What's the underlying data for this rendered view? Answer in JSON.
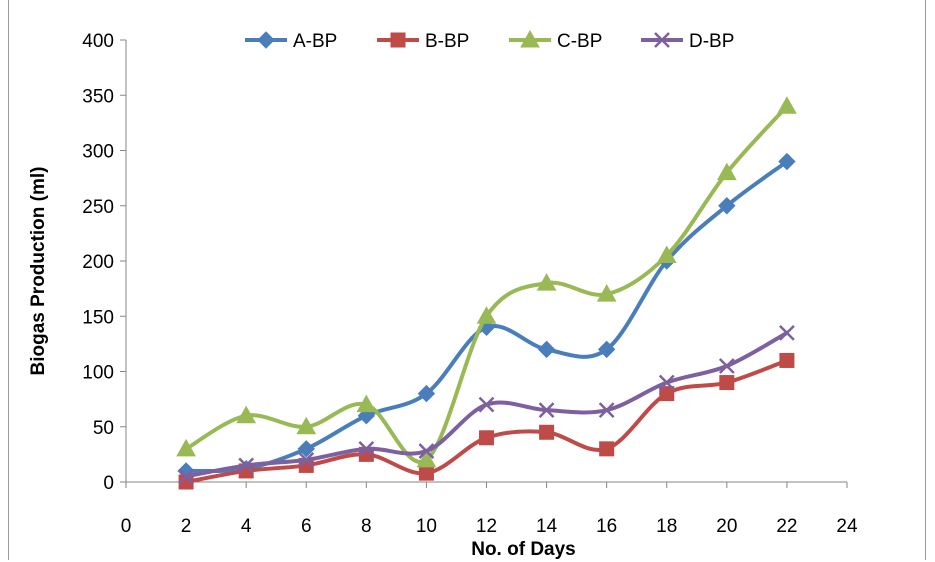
{
  "chart_data": {
    "type": "line",
    "title": "",
    "xlabel": "No. of Days",
    "ylabel": "Biogas Production (ml)",
    "xlim": [
      0,
      24
    ],
    "ylim": [
      0,
      400
    ],
    "x_ticks": [
      0,
      2,
      4,
      6,
      8,
      10,
      12,
      14,
      16,
      18,
      20,
      22,
      24
    ],
    "y_ticks": [
      0,
      50,
      100,
      150,
      200,
      250,
      300,
      350,
      400
    ],
    "grid": false,
    "legend_position": "top",
    "x": [
      2,
      4,
      6,
      8,
      10,
      12,
      14,
      16,
      18,
      20,
      22
    ],
    "series": [
      {
        "name": "A-BP",
        "color": "#4a7ebb",
        "marker": "diamond",
        "values": [
          10,
          12,
          30,
          60,
          80,
          140,
          120,
          120,
          200,
          250,
          290
        ]
      },
      {
        "name": "B-BP",
        "color": "#be4b48",
        "marker": "square",
        "values": [
          0,
          10,
          15,
          25,
          8,
          40,
          45,
          30,
          80,
          90,
          110
        ]
      },
      {
        "name": "C-BP",
        "color": "#98b954",
        "marker": "triangle",
        "values": [
          30,
          60,
          50,
          70,
          20,
          150,
          180,
          170,
          205,
          280,
          340
        ]
      },
      {
        "name": "D-BP",
        "color": "#7d60a0",
        "marker": "x",
        "values": [
          5,
          15,
          20,
          30,
          28,
          70,
          65,
          65,
          90,
          105,
          135
        ]
      }
    ]
  }
}
